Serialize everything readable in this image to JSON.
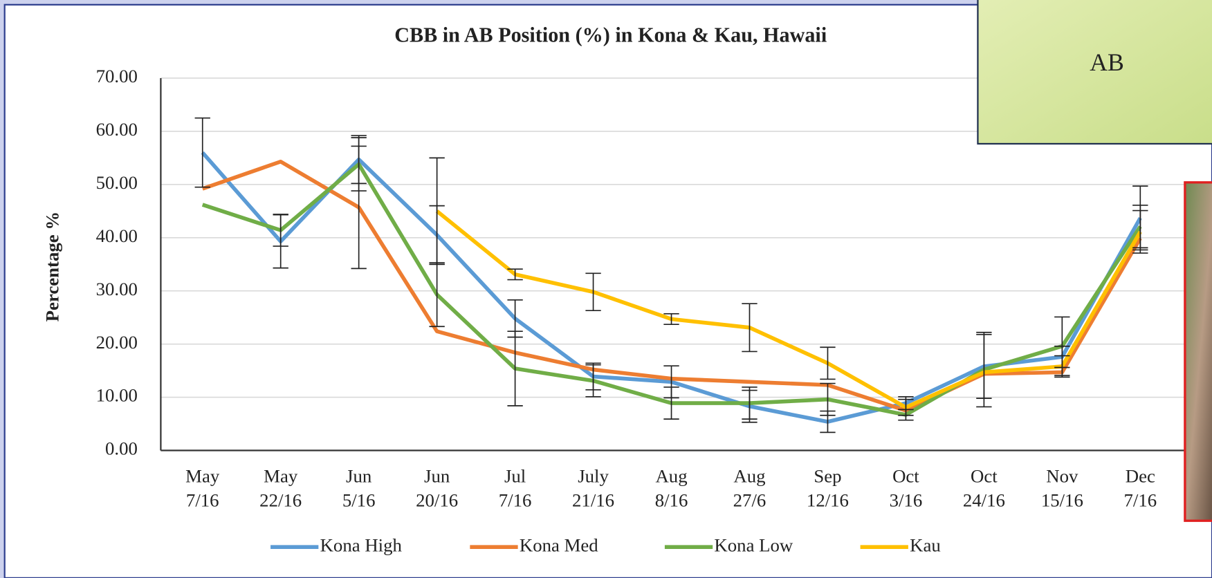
{
  "chart_data": {
    "type": "line",
    "title": "CBB in AB Position (%) in Kona & Kau, Hawaii",
    "y_label": "Percentage %",
    "categories": [
      "May\n7/16",
      "May\n22/16",
      "Jun\n5/16",
      "Jun\n20/16",
      "Jul\n7/16",
      "July\n21/16",
      "Aug\n8/16",
      "Aug\n27/6",
      "Sep\n12/16",
      "Oct\n3/16",
      "Oct\n24/16",
      "Nov\n15/16",
      "Dec\n7/16"
    ],
    "series": [
      {
        "name": "Kona High",
        "color": "#5b9bd5",
        "values": [
          56.0,
          39.3,
          54.7,
          40.5,
          24.8,
          13.9,
          12.9,
          8.3,
          5.4,
          8.9,
          15.8,
          17.6,
          43.7
        ],
        "errors": [
          6.5,
          5,
          4.5,
          5.5,
          3.5,
          2.5,
          3,
          3,
          2,
          1.2,
          6,
          2,
          6
        ]
      },
      {
        "name": "Kona Med",
        "color": "#ed7d31",
        "values": [
          49.2,
          54.3,
          45.7,
          22.4,
          18.4,
          15.2,
          13.5,
          12.9,
          12.3,
          7.5,
          14.4,
          14.7,
          39.9
        ],
        "errors": [
          null,
          null,
          11.5,
          null,
          null,
          null,
          null,
          null,
          null,
          null,
          null,
          null,
          null
        ]
      },
      {
        "name": "Kona Low",
        "color": "#70ad47",
        "values": [
          46.2,
          41.4,
          53.8,
          29.3,
          15.4,
          13.1,
          8.9,
          8.9,
          9.6,
          6.7,
          15.2,
          19.6,
          42.1
        ],
        "errors": [
          null,
          3,
          5,
          6,
          7,
          3,
          3,
          3,
          3,
          1,
          7,
          5.5,
          4
        ]
      },
      {
        "name": "Kau",
        "color": "#ffc000",
        "values": [
          null,
          null,
          null,
          45.0,
          33.1,
          29.8,
          24.7,
          23.1,
          16.4,
          8.1,
          14.7,
          15.8,
          41.1
        ],
        "errors": [
          null,
          null,
          null,
          10,
          1,
          3.5,
          1,
          4.5,
          3,
          1.5,
          null,
          2,
          4
        ]
      }
    ],
    "ylim": [
      0,
      70
    ],
    "yticks": [
      {
        "value": 0,
        "label": "0.00"
      },
      {
        "value": 10,
        "label": "10.00"
      },
      {
        "value": 20,
        "label": "20.00"
      },
      {
        "value": 30,
        "label": "30.00"
      },
      {
        "value": 40,
        "label": "40.00"
      },
      {
        "value": 50,
        "label": "50.00"
      },
      {
        "value": 60,
        "label": "60.00"
      },
      {
        "value": 70,
        "label": "70.00"
      }
    ],
    "grid": true
  },
  "inset_label": "AB"
}
